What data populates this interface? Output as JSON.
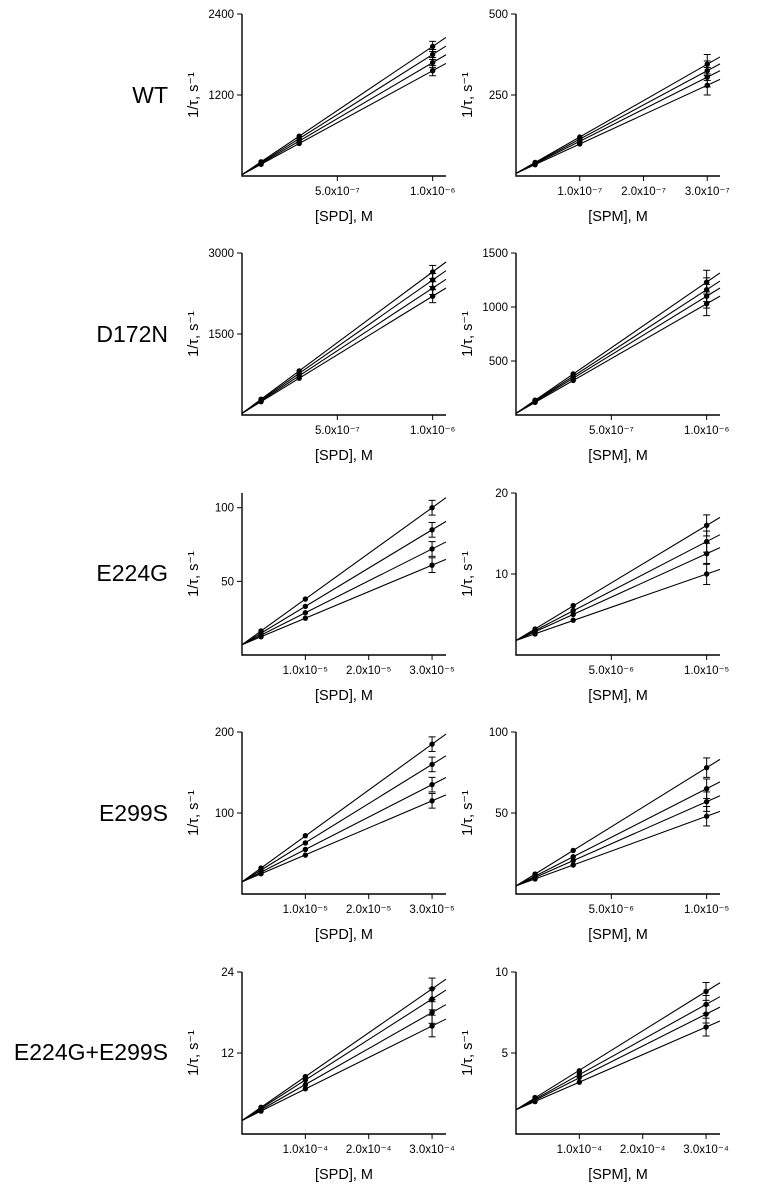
{
  "colors": {
    "ink": "#000000",
    "background": "#ffffff"
  },
  "figure": {
    "rows": [
      {
        "label": "WT"
      },
      {
        "label": "D172N"
      },
      {
        "label": "E224G"
      },
      {
        "label": "E299S"
      },
      {
        "label": "E224G+E299S"
      }
    ]
  },
  "chart_data": [
    {
      "type": "scatter",
      "variant": "WT",
      "xlabel": "[SPD], M",
      "ylabel": "1/τ, s⁻¹",
      "xlim": [
        0,
        1.07e-06
      ],
      "ylim": [
        0,
        2400
      ],
      "xticks": [
        {
          "v": 5e-07,
          "label": "5.0x10⁻⁷"
        },
        {
          "v": 1e-06,
          "label": "1.0x10⁻⁶"
        }
      ],
      "yticks": [
        {
          "v": 1200,
          "label": "1200"
        },
        {
          "v": 2400,
          "label": "2400"
        }
      ],
      "points_x": [
        1e-07,
        3e-07,
        1e-06
      ],
      "intercept": 20,
      "series": [
        {
          "name": "fit-1",
          "y": [
            174,
            482,
            1560
          ]
        },
        {
          "name": "fit-2",
          "y": [
            186,
            518,
            1680
          ]
        },
        {
          "name": "fit-3",
          "y": [
            198,
            554,
            1800
          ]
        },
        {
          "name": "fit-4",
          "y": [
            210,
            590,
            1920
          ]
        }
      ],
      "yerr_last": 75
    },
    {
      "type": "scatter",
      "variant": "WT",
      "xlabel": "[SPM], M",
      "ylabel": "1/τ, s⁻¹",
      "xlim": [
        0,
        3.2e-07
      ],
      "ylim": [
        0,
        500
      ],
      "xticks": [
        {
          "v": 1e-07,
          "label": "1.0x10⁻⁷"
        },
        {
          "v": 2e-07,
          "label": "2.0x10⁻⁷"
        },
        {
          "v": 3e-07,
          "label": "3.0x10⁻⁷"
        }
      ],
      "yticks": [
        {
          "v": 250,
          "label": "250"
        },
        {
          "v": 500,
          "label": "500"
        }
      ],
      "points_x": [
        3e-08,
        1e-07,
        3e-07
      ],
      "intercept": 8,
      "series": [
        {
          "name": "fit-1",
          "y": [
            35,
            99,
            280
          ]
        },
        {
          "name": "fit-2",
          "y": [
            38,
            107,
            305
          ]
        },
        {
          "name": "fit-3",
          "y": [
            40,
            114,
            325
          ]
        },
        {
          "name": "fit-4",
          "y": [
            42,
            120,
            345
          ]
        }
      ],
      "yerr_last": 30
    },
    {
      "type": "scatter",
      "variant": "D172N",
      "xlabel": "[SPD], M",
      "ylabel": "1/τ, s⁻¹",
      "xlim": [
        0,
        1.07e-06
      ],
      "ylim": [
        0,
        3000
      ],
      "xticks": [
        {
          "v": 5e-07,
          "label": "5.0x10⁻⁷"
        },
        {
          "v": 1e-06,
          "label": "1.0x10⁻⁶"
        }
      ],
      "yticks": [
        {
          "v": 1500,
          "label": "1500"
        },
        {
          "v": 3000,
          "label": "3000"
        }
      ],
      "points_x": [
        1e-07,
        3e-07,
        1e-06
      ],
      "intercept": 30,
      "series": [
        {
          "name": "fit-1",
          "y": [
            247,
            681,
            2200
          ]
        },
        {
          "name": "fit-2",
          "y": [
            262,
            726,
            2350
          ]
        },
        {
          "name": "fit-3",
          "y": [
            277,
            771,
            2500
          ]
        },
        {
          "name": "fit-4",
          "y": [
            292,
            816,
            2650
          ]
        }
      ],
      "yerr_last": 120
    },
    {
      "type": "scatter",
      "variant": "D172N",
      "xlabel": "[SPM], M",
      "ylabel": "1/τ, s⁻¹",
      "xlim": [
        0,
        1.07e-06
      ],
      "ylim": [
        0,
        1500
      ],
      "xticks": [
        {
          "v": 5e-07,
          "label": "5.0x10⁻⁷"
        },
        {
          "v": 1e-06,
          "label": "1.0x10⁻⁶"
        }
      ],
      "yticks": [
        {
          "v": 500,
          "label": "500"
        },
        {
          "v": 1000,
          "label": "1000"
        },
        {
          "v": 1500,
          "label": "1500"
        }
      ],
      "points_x": [
        1e-07,
        3e-07,
        1e-06
      ],
      "intercept": 15,
      "series": [
        {
          "name": "fit-1",
          "y": [
            117,
            320,
            1030
          ]
        },
        {
          "name": "fit-2",
          "y": [
            124,
            341,
            1100
          ]
        },
        {
          "name": "fit-3",
          "y": [
            130,
            359,
            1160
          ]
        },
        {
          "name": "fit-4",
          "y": [
            137,
            380,
            1230
          ]
        }
      ],
      "yerr_last": 110
    },
    {
      "type": "scatter",
      "variant": "E224G",
      "xlabel": "[SPD], M",
      "ylabel": "1/τ, s⁻¹",
      "xlim": [
        0,
        3.22e-05
      ],
      "ylim": [
        0,
        110
      ],
      "xticks": [
        {
          "v": 1e-05,
          "label": "1.0x10⁻⁵"
        },
        {
          "v": 2e-05,
          "label": "2.0x10⁻⁵"
        },
        {
          "v": 3e-05,
          "label": "3.0x10⁻⁵"
        }
      ],
      "yticks": [
        {
          "v": 50,
          "label": "50"
        },
        {
          "v": 100,
          "label": "100"
        }
      ],
      "points_x": [
        3e-06,
        1e-05,
        3e-05
      ],
      "intercept": 7,
      "series": [
        {
          "name": "fit-1",
          "y": [
            12.4,
            25,
            61
          ]
        },
        {
          "name": "fit-2",
          "y": [
            13.5,
            28.7,
            72
          ]
        },
        {
          "name": "fit-3",
          "y": [
            14.8,
            33,
            85
          ]
        },
        {
          "name": "fit-4",
          "y": [
            16.3,
            38,
            100
          ]
        }
      ],
      "yerr_last": 5
    },
    {
      "type": "scatter",
      "variant": "E224G",
      "xlabel": "[SPM], M",
      "ylabel": "1/τ, s⁻¹",
      "xlim": [
        0,
        1.07e-05
      ],
      "ylim": [
        0,
        20
      ],
      "xticks": [
        {
          "v": 5e-06,
          "label": "5.0x10⁻⁶"
        },
        {
          "v": 1e-05,
          "label": "1.0x10⁻⁵"
        }
      ],
      "yticks": [
        {
          "v": 10,
          "label": "10"
        },
        {
          "v": 20,
          "label": "20"
        }
      ],
      "points_x": [
        1e-06,
        3e-06,
        1e-05
      ],
      "intercept": 1.8,
      "series": [
        {
          "name": "fit-1",
          "y": [
            2.6,
            4.3,
            10
          ]
        },
        {
          "name": "fit-2",
          "y": [
            2.9,
            5.0,
            12.5
          ]
        },
        {
          "name": "fit-3",
          "y": [
            3.0,
            5.5,
            14
          ]
        },
        {
          "name": "fit-4",
          "y": [
            3.2,
            6.1,
            16
          ]
        }
      ],
      "yerr_last": 1.3
    },
    {
      "type": "scatter",
      "variant": "E299S",
      "xlabel": "[SPD], M",
      "ylabel": "1/τ, s⁻¹",
      "xlim": [
        0,
        3.22e-05
      ],
      "ylim": [
        0,
        200
      ],
      "xticks": [
        {
          "v": 1e-05,
          "label": "1.0x10⁻⁵"
        },
        {
          "v": 2e-05,
          "label": "2.0x10⁻⁵"
        },
        {
          "v": 3e-05,
          "label": "3.0x10⁻⁵"
        }
      ],
      "yticks": [
        {
          "v": 100,
          "label": "100"
        },
        {
          "v": 200,
          "label": "200"
        }
      ],
      "points_x": [
        3e-06,
        1e-05,
        3e-05
      ],
      "intercept": 15,
      "series": [
        {
          "name": "fit-1",
          "y": [
            25,
            48,
            115
          ]
        },
        {
          "name": "fit-2",
          "y": [
            27,
            55,
            135
          ]
        },
        {
          "name": "fit-3",
          "y": [
            29.5,
            63,
            160
          ]
        },
        {
          "name": "fit-4",
          "y": [
            32,
            72,
            185
          ]
        }
      ],
      "yerr_last": 9
    },
    {
      "type": "scatter",
      "variant": "E299S",
      "xlabel": "[SPM], M",
      "ylabel": "1/τ, s⁻¹",
      "xlim": [
        0,
        1.07e-05
      ],
      "ylim": [
        0,
        100
      ],
      "xticks": [
        {
          "v": 5e-06,
          "label": "5.0x10⁻⁶"
        },
        {
          "v": 1e-05,
          "label": "1.0x10⁻⁵"
        }
      ],
      "yticks": [
        {
          "v": 50,
          "label": "50"
        },
        {
          "v": 100,
          "label": "100"
        }
      ],
      "points_x": [
        1e-06,
        3e-06,
        1e-05
      ],
      "intercept": 5,
      "series": [
        {
          "name": "fit-1",
          "y": [
            9.3,
            17.9,
            48
          ]
        },
        {
          "name": "fit-2",
          "y": [
            10.2,
            20.6,
            57
          ]
        },
        {
          "name": "fit-3",
          "y": [
            11,
            23,
            65
          ]
        },
        {
          "name": "fit-4",
          "y": [
            12.3,
            26.9,
            78
          ]
        }
      ],
      "yerr_last": 6
    },
    {
      "type": "scatter",
      "variant": "E224G+E299S",
      "xlabel": "[SPD], M",
      "ylabel": "1/τ, s⁻¹",
      "xlim": [
        0,
        0.000322
      ],
      "ylim": [
        0,
        24
      ],
      "xticks": [
        {
          "v": 0.0001,
          "label": "1.0x10⁻⁴"
        },
        {
          "v": 0.0002,
          "label": "2.0x10⁻⁴"
        },
        {
          "v": 0.0003,
          "label": "3.0x10⁻⁴"
        }
      ],
      "yticks": [
        {
          "v": 12,
          "label": "12"
        },
        {
          "v": 24,
          "label": "24"
        }
      ],
      "points_x": [
        3e-05,
        0.0001,
        0.0003
      ],
      "intercept": 2,
      "series": [
        {
          "name": "fit-1",
          "y": [
            3.4,
            6.7,
            16
          ]
        },
        {
          "name": "fit-2",
          "y": [
            3.6,
            7.3,
            18
          ]
        },
        {
          "name": "fit-3",
          "y": [
            3.8,
            8.0,
            20
          ]
        },
        {
          "name": "fit-4",
          "y": [
            3.95,
            8.5,
            21.5
          ]
        }
      ],
      "yerr_last": 1.6
    },
    {
      "type": "scatter",
      "variant": "E224G+E299S",
      "xlabel": "[SPM], M",
      "ylabel": "1/τ, s⁻¹",
      "xlim": [
        0,
        0.000322
      ],
      "ylim": [
        0,
        10
      ],
      "xticks": [
        {
          "v": 0.0001,
          "label": "1.0x10⁻⁴"
        },
        {
          "v": 0.0002,
          "label": "2.0x10⁻⁴"
        },
        {
          "v": 0.0003,
          "label": "3.0x10⁻⁴"
        }
      ],
      "yticks": [
        {
          "v": 5,
          "label": "5"
        },
        {
          "v": 10,
          "label": "10"
        }
      ],
      "points_x": [
        3e-05,
        0.0001,
        0.0003
      ],
      "intercept": 1.5,
      "series": [
        {
          "name": "fit-1",
          "y": [
            2.0,
            3.2,
            6.6
          ]
        },
        {
          "name": "fit-2",
          "y": [
            2.1,
            3.5,
            7.4
          ]
        },
        {
          "name": "fit-3",
          "y": [
            2.15,
            3.7,
            8.0
          ]
        },
        {
          "name": "fit-4",
          "y": [
            2.25,
            3.9,
            8.8
          ]
        }
      ],
      "yerr_last": 0.55
    }
  ]
}
